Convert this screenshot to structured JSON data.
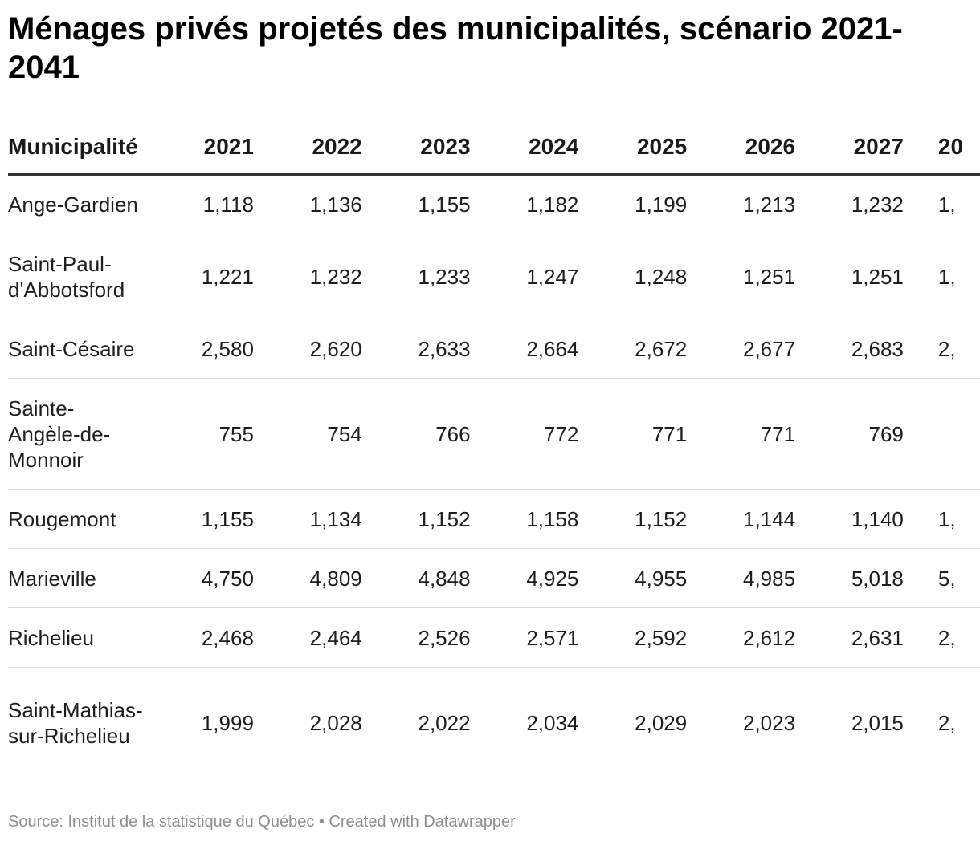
{
  "title": "Ménages privés projetés des municipalités, scénario 2021-2041",
  "source": "Source: Institut de la statistique du Québec • Created with Datawrapper",
  "chart_data": {
    "type": "table",
    "title": "Ménages privés projetés des municipalités, scénario 2021-2041",
    "columns": [
      "Municipalité",
      "2021",
      "2022",
      "2023",
      "2024",
      "2025",
      "2026",
      "2027",
      "20"
    ],
    "rows": [
      {
        "name": "Ange-Gardien",
        "values": [
          "1,118",
          "1,136",
          "1,155",
          "1,182",
          "1,199",
          "1,213",
          "1,232",
          "1,"
        ]
      },
      {
        "name": "Saint-Paul-d'Abbotsford",
        "values": [
          "1,221",
          "1,232",
          "1,233",
          "1,247",
          "1,248",
          "1,251",
          "1,251",
          "1,"
        ]
      },
      {
        "name": "Saint-Césaire",
        "values": [
          "2,580",
          "2,620",
          "2,633",
          "2,664",
          "2,672",
          "2,677",
          "2,683",
          "2,"
        ]
      },
      {
        "name": "Sainte-Angèle-de-Monnoir",
        "values": [
          "755",
          "754",
          "766",
          "772",
          "771",
          "771",
          "769",
          ""
        ]
      },
      {
        "name": "Rougemont",
        "values": [
          "1,155",
          "1,134",
          "1,152",
          "1,158",
          "1,152",
          "1,144",
          "1,140",
          "1,"
        ]
      },
      {
        "name": "Marieville",
        "values": [
          "4,750",
          "4,809",
          "4,848",
          "4,925",
          "4,955",
          "4,985",
          "5,018",
          "5,"
        ]
      },
      {
        "name": "Richelieu",
        "values": [
          "2,468",
          "2,464",
          "2,526",
          "2,571",
          "2,592",
          "2,612",
          "2,631",
          "2,"
        ]
      },
      {
        "name": "Saint-Mathias-sur-Richelieu",
        "values": [
          "1,999",
          "2,028",
          "2,022",
          "2,034",
          "2,029",
          "2,023",
          "2,015",
          "2,"
        ]
      }
    ]
  }
}
